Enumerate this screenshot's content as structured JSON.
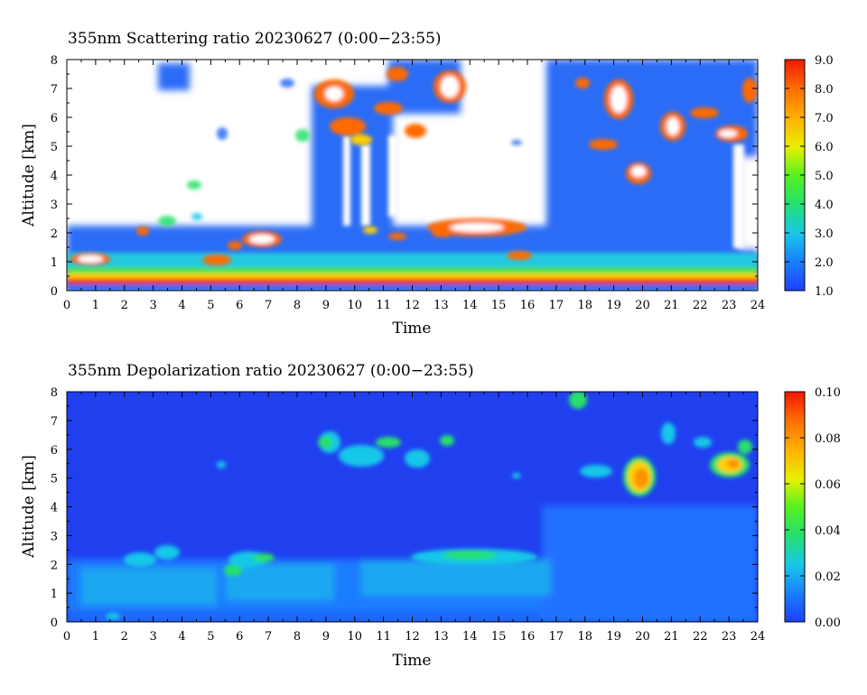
{
  "chart_data": [
    {
      "type": "heatmap",
      "title": "355nm Scattering ratio  20230627 (0:00−23:55)",
      "xlabel": "Time",
      "ylabel": "Altitude [km]",
      "x_ticks": [
        "0",
        "1",
        "2",
        "3",
        "4",
        "5",
        "6",
        "7",
        "8",
        "9",
        "10",
        "11",
        "12",
        "13",
        "14",
        "15",
        "16",
        "17",
        "18",
        "19",
        "20",
        "21",
        "22",
        "23",
        "24"
      ],
      "y_ticks": [
        "0",
        "1",
        "2",
        "3",
        "4",
        "5",
        "6",
        "7",
        "8"
      ],
      "xlim": [
        0,
        24
      ],
      "ylim": [
        0,
        8
      ],
      "colorbar": {
        "range": [
          1.0,
          9.0
        ],
        "ticks": [
          "1.0",
          "2.0",
          "3.0",
          "4.0",
          "5.0",
          "6.0",
          "7.0",
          "8.0",
          "9.0"
        ],
        "colormap": "blue-cyan-green-yellow-orange-red",
        "over_color": "#ffffff"
      },
      "features": [
        {
          "desc": "strong surface layer",
          "x": [
            0,
            24
          ],
          "y": [
            0.2,
            0.35
          ],
          "value": 9.0
        },
        {
          "desc": "boundary layer aerosol",
          "x": [
            0,
            24
          ],
          "y": [
            0.35,
            1.5
          ],
          "value": 3.0
        },
        {
          "desc": "low cloud",
          "x": [
            0.2,
            1.6
          ],
          "y": [
            0.9,
            1.2
          ],
          "value": 8.0
        },
        {
          "desc": "cloud",
          "x": [
            6.3,
            7.3
          ],
          "y": [
            1.6,
            1.9
          ],
          "value": 9.0
        },
        {
          "desc": "cloud layer",
          "x": [
            13.0,
            15.8
          ],
          "y": [
            1.9,
            2.4
          ],
          "value": 8.0
        },
        {
          "desc": "cirrus",
          "x": [
            8.8,
            12.6
          ],
          "y": [
            5.0,
            7.2
          ],
          "value": 7.0
        },
        {
          "desc": "cirrus",
          "x": [
            12.8,
            14.0
          ],
          "y": [
            7.0,
            7.7
          ],
          "value": 9.0
        },
        {
          "desc": "cloud",
          "x": [
            19.0,
            20.0
          ],
          "y": [
            6.2,
            7.0
          ],
          "value": 9.0
        },
        {
          "desc": "cloud",
          "x": [
            19.6,
            20.3
          ],
          "y": [
            3.9,
            4.3
          ],
          "value": 9.0
        },
        {
          "desc": "cloud",
          "x": [
            21.0,
            22.0
          ],
          "y": [
            5.0,
            6.0
          ],
          "value": 8.5
        },
        {
          "desc": "cloud",
          "x": [
            22.5,
            23.7
          ],
          "y": [
            5.2,
            5.9
          ],
          "value": 8.0
        }
      ]
    },
    {
      "type": "heatmap",
      "title": "355nm Depolarization ratio  20230627 (0:00−23:55)",
      "xlabel": "Time",
      "ylabel": "Altitude [km]",
      "x_ticks": [
        "0",
        "1",
        "2",
        "3",
        "4",
        "5",
        "6",
        "7",
        "8",
        "9",
        "10",
        "11",
        "12",
        "13",
        "14",
        "15",
        "16",
        "17",
        "18",
        "19",
        "20",
        "21",
        "22",
        "23",
        "24"
      ],
      "y_ticks": [
        "0",
        "1",
        "2",
        "3",
        "4",
        "5",
        "6",
        "7",
        "8"
      ],
      "xlim": [
        0,
        24
      ],
      "ylim": [
        0,
        8
      ],
      "colorbar": {
        "range": [
          0.0,
          0.1
        ],
        "ticks": [
          "0.00",
          "0.02",
          "0.04",
          "0.06",
          "0.08",
          "0.10"
        ],
        "colormap": "blue-cyan-green-yellow-orange-red"
      },
      "features": [
        {
          "desc": "background",
          "x": [
            0,
            24
          ],
          "y": [
            0,
            8
          ],
          "value": 0.0
        },
        {
          "desc": "boundary layer",
          "x": [
            0,
            17
          ],
          "y": [
            0.3,
            2.0
          ],
          "value": 0.015
        },
        {
          "desc": "elevated layer",
          "x": [
            13,
            16.5
          ],
          "y": [
            1.9,
            2.5
          ],
          "value": 0.03
        },
        {
          "desc": "cirrus",
          "x": [
            8.8,
            12.6
          ],
          "y": [
            5.0,
            6.6
          ],
          "value": 0.035
        },
        {
          "desc": "cirrus",
          "x": [
            19.2,
            20.5
          ],
          "y": [
            4.5,
            5.6
          ],
          "value": 0.07
        },
        {
          "desc": "cirrus",
          "x": [
            22.3,
            24
          ],
          "y": [
            5.0,
            6.3
          ],
          "value": 0.06
        }
      ]
    }
  ]
}
